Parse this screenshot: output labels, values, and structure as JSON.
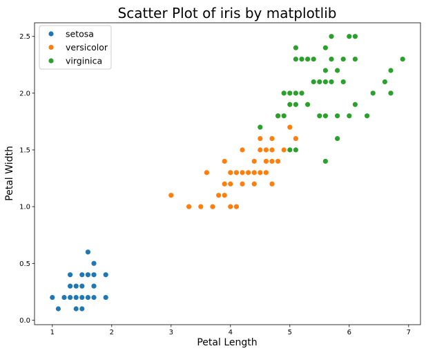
{
  "chart_data": {
    "type": "scatter",
    "title": "Scatter Plot of iris by matplotlib",
    "xlabel": "Petal Length",
    "ylabel": "Petal Width",
    "xlim": [
      0.7,
      7.2
    ],
    "ylim": [
      -0.04,
      2.62
    ],
    "xticks": [
      "1",
      "2",
      "3",
      "4",
      "5",
      "6",
      "7"
    ],
    "yticks": [
      "0.0",
      "0.5",
      "1.0",
      "1.5",
      "2.0",
      "2.5"
    ],
    "grid": false,
    "legend_position": "top-left",
    "series": [
      {
        "name": "setosa",
        "color": "#1f77b4",
        "points": [
          [
            1.0,
            0.2
          ],
          [
            1.1,
            0.1
          ],
          [
            1.2,
            0.2
          ],
          [
            1.3,
            0.2
          ],
          [
            1.3,
            0.3
          ],
          [
            1.3,
            0.4
          ],
          [
            1.4,
            0.1
          ],
          [
            1.4,
            0.2
          ],
          [
            1.4,
            0.3
          ],
          [
            1.5,
            0.1
          ],
          [
            1.5,
            0.2
          ],
          [
            1.5,
            0.3
          ],
          [
            1.5,
            0.4
          ],
          [
            1.6,
            0.2
          ],
          [
            1.6,
            0.4
          ],
          [
            1.6,
            0.6
          ],
          [
            1.7,
            0.2
          ],
          [
            1.7,
            0.3
          ],
          [
            1.7,
            0.4
          ],
          [
            1.7,
            0.5
          ],
          [
            1.9,
            0.2
          ],
          [
            1.9,
            0.4
          ]
        ]
      },
      {
        "name": "versicolor",
        "color": "#ff7f0e",
        "points": [
          [
            3.0,
            1.1
          ],
          [
            3.3,
            1.0
          ],
          [
            3.5,
            1.0
          ],
          [
            3.6,
            1.3
          ],
          [
            3.7,
            1.0
          ],
          [
            3.8,
            1.1
          ],
          [
            3.9,
            1.1
          ],
          [
            3.9,
            1.2
          ],
          [
            3.9,
            1.4
          ],
          [
            4.0,
            1.0
          ],
          [
            4.0,
            1.2
          ],
          [
            4.0,
            1.3
          ],
          [
            4.1,
            1.0
          ],
          [
            4.1,
            1.3
          ],
          [
            4.2,
            1.2
          ],
          [
            4.2,
            1.3
          ],
          [
            4.2,
            1.5
          ],
          [
            4.3,
            1.3
          ],
          [
            4.4,
            1.2
          ],
          [
            4.4,
            1.3
          ],
          [
            4.4,
            1.4
          ],
          [
            4.5,
            1.3
          ],
          [
            4.5,
            1.5
          ],
          [
            4.5,
            1.6
          ],
          [
            4.6,
            1.3
          ],
          [
            4.6,
            1.4
          ],
          [
            4.6,
            1.5
          ],
          [
            4.7,
            1.2
          ],
          [
            4.7,
            1.4
          ],
          [
            4.7,
            1.5
          ],
          [
            4.7,
            1.6
          ],
          [
            4.8,
            1.4
          ],
          [
            4.8,
            1.8
          ],
          [
            4.9,
            1.5
          ],
          [
            5.0,
            1.7
          ],
          [
            5.1,
            1.6
          ]
        ]
      },
      {
        "name": "virginica",
        "color": "#2ca02c",
        "points": [
          [
            4.5,
            1.7
          ],
          [
            4.8,
            1.8
          ],
          [
            4.9,
            1.8
          ],
          [
            4.9,
            2.0
          ],
          [
            5.0,
            1.5
          ],
          [
            5.0,
            1.9
          ],
          [
            5.0,
            2.0
          ],
          [
            5.1,
            1.5
          ],
          [
            5.1,
            1.9
          ],
          [
            5.1,
            2.0
          ],
          [
            5.1,
            2.3
          ],
          [
            5.1,
            2.4
          ],
          [
            5.2,
            2.0
          ],
          [
            5.2,
            2.3
          ],
          [
            5.3,
            1.9
          ],
          [
            5.3,
            2.3
          ],
          [
            5.4,
            2.1
          ],
          [
            5.4,
            2.3
          ],
          [
            5.5,
            1.8
          ],
          [
            5.5,
            2.1
          ],
          [
            5.6,
            1.4
          ],
          [
            5.6,
            1.8
          ],
          [
            5.6,
            2.1
          ],
          [
            5.6,
            2.2
          ],
          [
            5.6,
            2.4
          ],
          [
            5.7,
            2.1
          ],
          [
            5.7,
            2.3
          ],
          [
            5.7,
            2.5
          ],
          [
            5.8,
            1.6
          ],
          [
            5.8,
            1.8
          ],
          [
            5.8,
            2.2
          ],
          [
            5.9,
            2.1
          ],
          [
            5.9,
            2.3
          ],
          [
            6.0,
            1.8
          ],
          [
            6.0,
            2.5
          ],
          [
            6.1,
            1.9
          ],
          [
            6.1,
            2.3
          ],
          [
            6.1,
            2.5
          ],
          [
            6.3,
            1.8
          ],
          [
            6.4,
            2.0
          ],
          [
            6.6,
            2.1
          ],
          [
            6.7,
            2.0
          ],
          [
            6.7,
            2.2
          ],
          [
            6.9,
            2.3
          ]
        ]
      }
    ]
  }
}
